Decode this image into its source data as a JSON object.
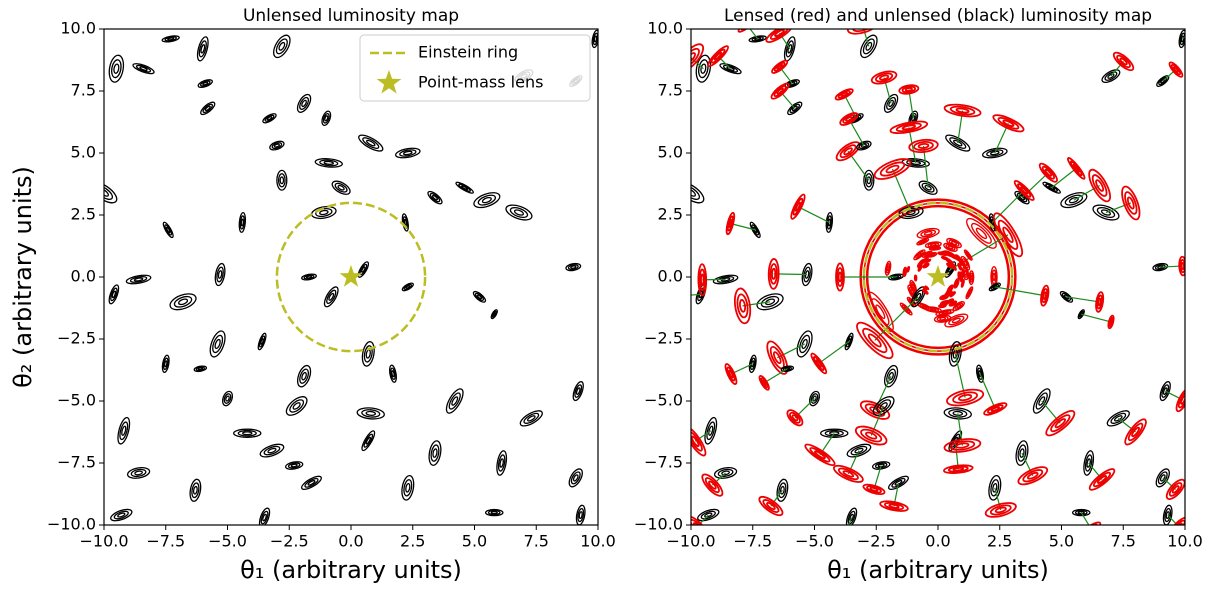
{
  "chart_data": [
    {
      "type": "galaxy-map",
      "title": "Unlensed luminosity map",
      "xlabel": "θ₁ (arbitrary units)",
      "ylabel": "θ₂ (arbitrary units)",
      "xlim": [
        -10,
        10
      ],
      "ylim": [
        -10,
        10
      ],
      "xticks": [
        {
          "value": -10,
          "label": "−10.0"
        },
        {
          "value": -7.5,
          "label": "−7.5"
        },
        {
          "value": -5,
          "label": "−5.0"
        },
        {
          "value": -2.5,
          "label": "−2.5"
        },
        {
          "value": 0,
          "label": "0.0"
        },
        {
          "value": 2.5,
          "label": "2.5"
        },
        {
          "value": 5,
          "label": "5.0"
        },
        {
          "value": 7.5,
          "label": "7.5"
        },
        {
          "value": 10,
          "label": "10.0"
        }
      ],
      "yticks": [
        {
          "value": -10,
          "label": "−10.0"
        },
        {
          "value": -7.5,
          "label": "−7.5"
        },
        {
          "value": -5,
          "label": "−5.0"
        },
        {
          "value": -2.5,
          "label": "−2.5"
        },
        {
          "value": 0,
          "label": "0.0"
        },
        {
          "value": 2.5,
          "label": "2.5"
        },
        {
          "value": 5,
          "label": "5.0"
        },
        {
          "value": 7.5,
          "label": "7.5"
        },
        {
          "value": 10,
          "label": "10.0"
        }
      ],
      "einstein_radius": 3,
      "lens": [
        0,
        0
      ],
      "lens_color": "#bcbd22",
      "legend": "upper right",
      "series": [
        {
          "name": "Einstein ring",
          "color": "#bcbd22"
        },
        {
          "name": "Point-mass lens",
          "color": "#bcbd22"
        }
      ],
      "galaxies": [
        {
          "x": -9.5,
          "y": 8.4,
          "r": 0.55,
          "q": 0.5,
          "pa": 80
        },
        {
          "x": -7.3,
          "y": 9.6,
          "r": 0.35,
          "q": 0.3,
          "pa": 10
        },
        {
          "x": -6.0,
          "y": 9.2,
          "r": 0.5,
          "q": 0.35,
          "pa": 75
        },
        {
          "x": -5.9,
          "y": 7.8,
          "r": 0.3,
          "q": 0.4,
          "pa": 20
        },
        {
          "x": -8.4,
          "y": 8.4,
          "r": 0.45,
          "q": 0.3,
          "pa": -20
        },
        {
          "x": -2.8,
          "y": 9.3,
          "r": 0.5,
          "q": 0.5,
          "pa": 60
        },
        {
          "x": -5.8,
          "y": 6.8,
          "r": 0.35,
          "q": 0.4,
          "pa": 40
        },
        {
          "x": -3.3,
          "y": 6.4,
          "r": 0.3,
          "q": 0.4,
          "pa": 30
        },
        {
          "x": -1.9,
          "y": 7.0,
          "r": 0.4,
          "q": 0.5,
          "pa": 60
        },
        {
          "x": -1.0,
          "y": 6.4,
          "r": 0.3,
          "q": 0.5,
          "pa": 70
        },
        {
          "x": 0.8,
          "y": 5.4,
          "r": 0.55,
          "q": 0.35,
          "pa": -30
        },
        {
          "x": 2.3,
          "y": 5.0,
          "r": 0.5,
          "q": 0.35,
          "pa": 10
        },
        {
          "x": -0.9,
          "y": 4.6,
          "r": 0.55,
          "q": 0.3,
          "pa": -5
        },
        {
          "x": -2.8,
          "y": 3.9,
          "r": 0.4,
          "q": 0.5,
          "pa": 90
        },
        {
          "x": -0.4,
          "y": 3.6,
          "r": 0.4,
          "q": 0.5,
          "pa": -30
        },
        {
          "x": 3.4,
          "y": 3.2,
          "r": 0.35,
          "q": 0.4,
          "pa": -40
        },
        {
          "x": 4.6,
          "y": 3.6,
          "r": 0.4,
          "q": 0.25,
          "pa": -30
        },
        {
          "x": 5.5,
          "y": 3.1,
          "r": 0.55,
          "q": 0.45,
          "pa": 20
        },
        {
          "x": 6.8,
          "y": 2.6,
          "r": 0.55,
          "q": 0.45,
          "pa": -20
        },
        {
          "x": -10.0,
          "y": 3.4,
          "r": 0.6,
          "q": 0.45,
          "pa": -35
        },
        {
          "x": -1.1,
          "y": 2.6,
          "r": 0.5,
          "q": 0.45,
          "pa": 10
        },
        {
          "x": -7.4,
          "y": 1.9,
          "r": 0.35,
          "q": 0.3,
          "pa": -60
        },
        {
          "x": -4.4,
          "y": 2.2,
          "r": 0.4,
          "q": 0.3,
          "pa": 85
        },
        {
          "x": 2.2,
          "y": 2.2,
          "r": 0.35,
          "q": 0.3,
          "pa": -80
        },
        {
          "x": -9.6,
          "y": -0.7,
          "r": 0.4,
          "q": 0.35,
          "pa": 70
        },
        {
          "x": -8.6,
          "y": -0.1,
          "r": 0.5,
          "q": 0.3,
          "pa": 10
        },
        {
          "x": -6.8,
          "y": -1.0,
          "r": 0.55,
          "q": 0.5,
          "pa": 20
        },
        {
          "x": -5.3,
          "y": 0.1,
          "r": 0.45,
          "q": 0.4,
          "pa": 80
        },
        {
          "x": -1.7,
          "y": 0.0,
          "r": 0.3,
          "q": 0.35,
          "pa": 10
        },
        {
          "x": -0.8,
          "y": -0.8,
          "r": 0.45,
          "q": 0.4,
          "pa": 60
        },
        {
          "x": 0.5,
          "y": 0.3,
          "r": 0.35,
          "q": 0.35,
          "pa": 60
        },
        {
          "x": 9.0,
          "y": 0.4,
          "r": 0.3,
          "q": 0.45,
          "pa": 10
        },
        {
          "x": 5.2,
          "y": -0.8,
          "r": 0.3,
          "q": 0.4,
          "pa": -40
        },
        {
          "x": 5.8,
          "y": -1.5,
          "r": 0.2,
          "q": 0.4,
          "pa": 60
        },
        {
          "x": -3.6,
          "y": -2.6,
          "r": 0.35,
          "q": 0.3,
          "pa": 70
        },
        {
          "x": -5.4,
          "y": -2.7,
          "r": 0.55,
          "q": 0.45,
          "pa": 70
        },
        {
          "x": 0.7,
          "y": -3.1,
          "r": 0.5,
          "q": 0.45,
          "pa": 80
        },
        {
          "x": -7.5,
          "y": -3.5,
          "r": 0.35,
          "q": 0.35,
          "pa": 80
        },
        {
          "x": -6.1,
          "y": -3.7,
          "r": 0.25,
          "q": 0.4,
          "pa": 10
        },
        {
          "x": -1.9,
          "y": -4.0,
          "r": 0.45,
          "q": 0.5,
          "pa": 70
        },
        {
          "x": 1.7,
          "y": -3.9,
          "r": 0.35,
          "q": 0.35,
          "pa": -80
        },
        {
          "x": -2.2,
          "y": -5.2,
          "r": 0.5,
          "q": 0.5,
          "pa": 40
        },
        {
          "x": -5.0,
          "y": -4.9,
          "r": 0.3,
          "q": 0.6,
          "pa": 70
        },
        {
          "x": -9.2,
          "y": -6.2,
          "r": 0.55,
          "q": 0.35,
          "pa": 75
        },
        {
          "x": -8.6,
          "y": -7.9,
          "r": 0.45,
          "q": 0.45,
          "pa": 10
        },
        {
          "x": -4.2,
          "y": -6.3,
          "r": 0.55,
          "q": 0.3,
          "pa": 0
        },
        {
          "x": -3.2,
          "y": -7.0,
          "r": 0.5,
          "q": 0.4,
          "pa": 20
        },
        {
          "x": 0.7,
          "y": -6.6,
          "r": 0.45,
          "q": 0.3,
          "pa": 60
        },
        {
          "x": -2.3,
          "y": -7.6,
          "r": 0.35,
          "q": 0.4,
          "pa": 10
        },
        {
          "x": 0.8,
          "y": -5.5,
          "r": 0.55,
          "q": 0.4,
          "pa": -5
        },
        {
          "x": 3.4,
          "y": -7.1,
          "r": 0.5,
          "q": 0.45,
          "pa": 80
        },
        {
          "x": 4.2,
          "y": -5.0,
          "r": 0.55,
          "q": 0.4,
          "pa": 60
        },
        {
          "x": 6.1,
          "y": -7.5,
          "r": 0.5,
          "q": 0.35,
          "pa": 80
        },
        {
          "x": 7.3,
          "y": -5.7,
          "r": 0.5,
          "q": 0.4,
          "pa": 30
        },
        {
          "x": 9.2,
          "y": -4.6,
          "r": 0.4,
          "q": 0.4,
          "pa": 70
        },
        {
          "x": 9.1,
          "y": -8.1,
          "r": 0.4,
          "q": 0.5,
          "pa": 60
        },
        {
          "x": -6.3,
          "y": -8.6,
          "r": 0.45,
          "q": 0.45,
          "pa": 80
        },
        {
          "x": -1.6,
          "y": -8.3,
          "r": 0.45,
          "q": 0.35,
          "pa": 30
        },
        {
          "x": -3.5,
          "y": -9.7,
          "r": 0.4,
          "q": 0.4,
          "pa": 70
        },
        {
          "x": -9.3,
          "y": -9.6,
          "r": 0.45,
          "q": 0.4,
          "pa": 20
        },
        {
          "x": 2.3,
          "y": -8.5,
          "r": 0.5,
          "q": 0.45,
          "pa": 80
        },
        {
          "x": 5.8,
          "y": -9.5,
          "r": 0.35,
          "q": 0.35,
          "pa": 0
        },
        {
          "x": 9.3,
          "y": -9.6,
          "r": 0.4,
          "q": 0.4,
          "pa": 80
        },
        {
          "x": 9.9,
          "y": 9.6,
          "r": 0.35,
          "q": 0.35,
          "pa": 80
        },
        {
          "x": 7.0,
          "y": 8.1,
          "r": 0.4,
          "q": 0.45,
          "pa": 30
        },
        {
          "x": 9.1,
          "y": 7.9,
          "r": 0.3,
          "q": 0.4,
          "pa": 40
        },
        {
          "x": 2.3,
          "y": -0.4,
          "r": 0.25,
          "q": 0.4,
          "pa": 30
        },
        {
          "x": -3.0,
          "y": 5.3,
          "r": 0.3,
          "q": 0.5,
          "pa": 20
        }
      ]
    },
    {
      "type": "lensed-map",
      "title": "Lensed (red) and unlensed (black) luminosity map",
      "xlabel": "θ₁ (arbitrary units)",
      "xlim": [
        -10,
        10
      ],
      "ylim": [
        -10,
        10
      ],
      "xticks": [
        {
          "value": -10,
          "label": "−10.0"
        },
        {
          "value": -7.5,
          "label": "−7.5"
        },
        {
          "value": -5,
          "label": "−5.0"
        },
        {
          "value": -2.5,
          "label": "−2.5"
        },
        {
          "value": 0,
          "label": "0.0"
        },
        {
          "value": 2.5,
          "label": "2.5"
        },
        {
          "value": 5,
          "label": "5.0"
        },
        {
          "value": 7.5,
          "label": "7.5"
        },
        {
          "value": 10,
          "label": "10.0"
        }
      ],
      "yticks": [
        {
          "value": -10,
          "label": "−10.0"
        },
        {
          "value": -7.5,
          "label": "−7.5"
        },
        {
          "value": -5,
          "label": "−5.0"
        },
        {
          "value": -2.5,
          "label": "−2.5"
        },
        {
          "value": 0,
          "label": "0.0"
        },
        {
          "value": 2.5,
          "label": "2.5"
        },
        {
          "value": 5,
          "label": "5.0"
        },
        {
          "value": 7.5,
          "label": "7.5"
        },
        {
          "value": 10,
          "label": "10.0"
        }
      ],
      "einstein_radius": 3,
      "lens": [
        0,
        0
      ],
      "lens_color": "#bcbd22",
      "lensed_color": "#ee0000",
      "link_color": "#1a8a1a"
    }
  ]
}
